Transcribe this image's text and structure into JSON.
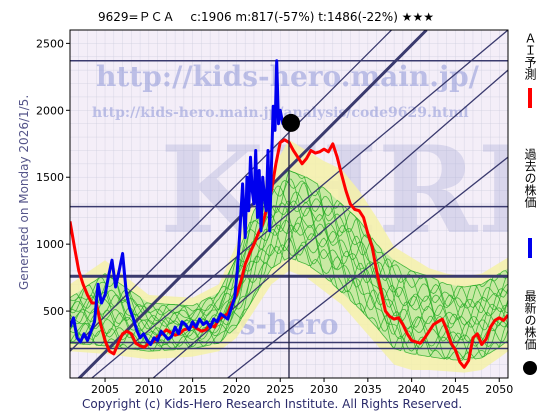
{
  "header": {
    "text": "9629=ＰＣＡ　 c:1906  m:817(-57%)  t:1486(-22%)  ★★★"
  },
  "watermark": {
    "line1": "http://kids-hero.main.jp/",
    "line2": "http://kids-hero.main.jp/analysis/code9629.html",
    "big": "KHRI",
    "lower": "kids-hero"
  },
  "side_label": "Generated on Monday 2026/1/5.",
  "footer": "Copyright (c) Kids-Hero Research Institute. All Rights Reserved.",
  "legend": [
    {
      "label": "ＡＩ予測",
      "color": "#ff0000",
      "marker": "line"
    },
    {
      "label": "過去の株価",
      "color": "#0000ee",
      "marker": "line"
    },
    {
      "label": "最新の株価",
      "color": "#000000",
      "marker": "dot"
    }
  ],
  "colors": {
    "plot_bg": "#f4eef8",
    "grid": "#cfcfe0",
    "band_outer": "#f5f1a8",
    "band_inner": "#bfe8a0",
    "green_lines": "#22aa22",
    "ref_lines": "#3a3a6e",
    "crosshair": "#222244"
  },
  "chart_data": {
    "type": "line",
    "xlim": [
      2001,
      2051
    ],
    "ylim": [
      0,
      2600
    ],
    "x_ticks": [
      2005,
      2010,
      2015,
      2020,
      2025,
      2030,
      2035,
      2040,
      2045,
      2050
    ],
    "y_ticks": [
      500,
      1000,
      1500,
      2000,
      2500
    ],
    "latest": {
      "x": 2026.0,
      "y": 1906
    },
    "current_year": 2026.0,
    "horizontal_levels": [
      {
        "y": 2370,
        "weight": "thin"
      },
      {
        "y": 1280,
        "weight": "thin"
      },
      {
        "y": 760,
        "weight": "thick"
      },
      {
        "y": 265,
        "weight": "thin"
      },
      {
        "y": 220,
        "weight": "thin"
      }
    ],
    "diagonal_lines": [
      {
        "x": [
          2001,
          2037.7
        ],
        "y": [
          200,
          2600
        ],
        "weight": "thin"
      },
      {
        "x": [
          2001,
          2041.7
        ],
        "y": [
          -70,
          2600
        ],
        "weight": "thick"
      },
      {
        "x": [
          2003.5,
          2051
        ],
        "y": [
          0,
          2600
        ],
        "weight": "thin"
      },
      {
        "x": [
          2010.5,
          2051
        ],
        "y": [
          0,
          2300
        ],
        "weight": "thin"
      },
      {
        "x": [
          2019,
          2051
        ],
        "y": [
          0,
          1650
        ],
        "weight": "thin"
      }
    ],
    "series": [
      {
        "name": "過去の株価",
        "color": "#0000ee",
        "x": [
          2001,
          2001.4,
          2001.8,
          2002.2,
          2002.6,
          2003,
          2003.4,
          2003.8,
          2004.2,
          2004.6,
          2005,
          2005.4,
          2005.8,
          2006.2,
          2006.6,
          2007,
          2007.4,
          2007.8,
          2008.2,
          2008.6,
          2009,
          2009.4,
          2009.8,
          2010.2,
          2010.6,
          2011,
          2011.4,
          2011.8,
          2012.2,
          2012.6,
          2013,
          2013.4,
          2013.8,
          2014.2,
          2014.6,
          2015,
          2015.4,
          2015.8,
          2016.2,
          2016.6,
          2017,
          2017.4,
          2017.8,
          2018.2,
          2018.6,
          2019,
          2019.4,
          2019.8,
          2020.1,
          2020.4,
          2020.7,
          2021,
          2021.2,
          2021.4,
          2021.6,
          2021.8,
          2022,
          2022.2,
          2022.4,
          2022.6,
          2022.8,
          2023,
          2023.2,
          2023.4,
          2023.6,
          2023.8,
          2024,
          2024.2,
          2024.4,
          2024.6,
          2024.8,
          2025,
          2025.3,
          2025.6
        ],
        "values": [
          380,
          450,
          300,
          270,
          330,
          280,
          350,
          420,
          700,
          560,
          620,
          760,
          880,
          680,
          800,
          930,
          650,
          520,
          450,
          360,
          300,
          330,
          280,
          250,
          300,
          280,
          350,
          320,
          290,
          310,
          380,
          330,
          420,
          400,
          360,
          420,
          380,
          440,
          400,
          420,
          380,
          440,
          420,
          480,
          460,
          440,
          520,
          600,
          800,
          1100,
          1450,
          1050,
          1500,
          1250,
          1650,
          1400,
          1300,
          1700,
          1200,
          1550,
          1100,
          1500,
          1350,
          1250,
          1700,
          1100,
          1600,
          2030,
          1850,
          2370,
          1900,
          2000,
          1900,
          1906
        ]
      },
      {
        "name": "ＡＩ予測",
        "color": "#ff0000",
        "x": [
          2001,
          2001.5,
          2002,
          2002.5,
          2003,
          2003.5,
          2004,
          2004.5,
          2005,
          2005.5,
          2006,
          2006.5,
          2007,
          2007.5,
          2008,
          2008.5,
          2009,
          2009.5,
          2010,
          2010.5,
          2011,
          2011.5,
          2012,
          2012.5,
          2013,
          2013.5,
          2014,
          2014.5,
          2015,
          2015.5,
          2016,
          2016.5,
          2017,
          2017.5,
          2018,
          2018.5,
          2019,
          2019.5,
          2020,
          2020.5,
          2021,
          2021.5,
          2022,
          2022.5,
          2023,
          2023.5,
          2024,
          2024.5,
          2025,
          2025.5,
          2026,
          2026.5,
          2027,
          2027.5,
          2028,
          2028.5,
          2029,
          2029.5,
          2030,
          2030.5,
          2031,
          2031.5,
          2032,
          2032.5,
          2033,
          2033.5,
          2034,
          2034.5,
          2035,
          2035.5,
          2036,
          2036.5,
          2037,
          2037.5,
          2038,
          2038.5,
          2039,
          2039.5,
          2040,
          2040.5,
          2041,
          2041.5,
          2042,
          2042.5,
          2043,
          2043.5,
          2044,
          2044.5,
          2045,
          2045.5,
          2046,
          2046.5,
          2047,
          2047.5,
          2048,
          2048.5,
          2049,
          2049.5,
          2050,
          2050.5,
          2051
        ],
        "values": [
          1170,
          980,
          800,
          700,
          620,
          560,
          560,
          400,
          280,
          200,
          180,
          260,
          330,
          350,
          330,
          260,
          240,
          230,
          260,
          270,
          310,
          330,
          360,
          340,
          320,
          330,
          360,
          370,
          390,
          370,
          350,
          360,
          400,
          380,
          440,
          460,
          480,
          560,
          620,
          720,
          850,
          930,
          1000,
          1080,
          1150,
          1280,
          1400,
          1600,
          1760,
          1780,
          1760,
          1700,
          1650,
          1600,
          1640,
          1700,
          1680,
          1690,
          1710,
          1690,
          1750,
          1650,
          1520,
          1400,
          1300,
          1260,
          1250,
          1200,
          1080,
          980,
          800,
          650,
          500,
          460,
          440,
          450,
          400,
          330,
          280,
          270,
          260,
          300,
          350,
          400,
          420,
          440,
          360,
          260,
          210,
          120,
          80,
          130,
          300,
          330,
          250,
          290,
          380,
          430,
          450,
          430,
          470
        ]
      }
    ],
    "envelope_outer": {
      "x": [
        2001,
        2005,
        2010,
        2015,
        2018,
        2020,
        2022,
        2024,
        2026,
        2028,
        2030,
        2032,
        2034,
        2036,
        2038,
        2040,
        2042,
        2044,
        2046,
        2048,
        2050,
        2051
      ],
      "upper": [
        700,
        880,
        620,
        600,
        700,
        1000,
        1350,
        1550,
        1780,
        1700,
        1620,
        1560,
        1400,
        1200,
        980,
        900,
        820,
        780,
        760,
        780,
        860,
        900
      ],
      "lower": [
        200,
        180,
        140,
        160,
        200,
        300,
        500,
        700,
        800,
        750,
        650,
        550,
        400,
        250,
        100,
        60,
        60,
        50,
        40,
        60,
        150,
        200
      ]
    },
    "envelope_inner": {
      "x": [
        2001,
        2005,
        2010,
        2015,
        2018,
        2020,
        2022,
        2024,
        2026,
        2028,
        2030,
        2032,
        2034,
        2036,
        2038,
        2040,
        2042,
        2044,
        2046,
        2048,
        2050,
        2051
      ],
      "upper": [
        600,
        780,
        560,
        540,
        640,
        900,
        1250,
        1450,
        1550,
        1500,
        1420,
        1300,
        1180,
        1000,
        880,
        800,
        760,
        700,
        680,
        700,
        780,
        820
      ],
      "lower": [
        260,
        240,
        200,
        220,
        260,
        380,
        600,
        820,
        900,
        850,
        760,
        640,
        520,
        380,
        220,
        180,
        160,
        140,
        130,
        150,
        230,
        280
      ]
    },
    "green_lines_count": 16
  }
}
